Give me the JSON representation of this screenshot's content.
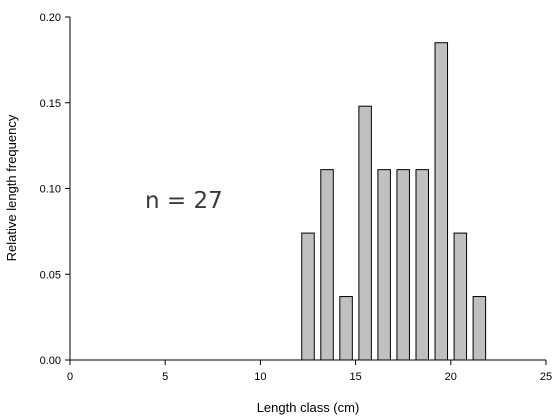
{
  "chart_data": {
    "type": "bar",
    "title": "",
    "xlabel": "Length class (cm)",
    "ylabel": "Relative length frequency",
    "xlim": [
      0,
      25
    ],
    "ylim": [
      0,
      0.2
    ],
    "x_ticks": [
      "0",
      "5",
      "10",
      "15",
      "20",
      "25"
    ],
    "y_ticks": [
      "0.00",
      "0.05",
      "0.10",
      "0.15",
      "0.20"
    ],
    "grid": false,
    "bar_color": "#c0c0c0",
    "annotation": "n = 27",
    "x": [
      12.5,
      13.5,
      14.5,
      15.5,
      16.5,
      17.5,
      18.5,
      19.5,
      20.5,
      21.5
    ],
    "values": [
      0.074,
      0.111,
      0.037,
      0.148,
      0.111,
      0.111,
      0.111,
      0.185,
      0.074,
      0.037
    ]
  }
}
